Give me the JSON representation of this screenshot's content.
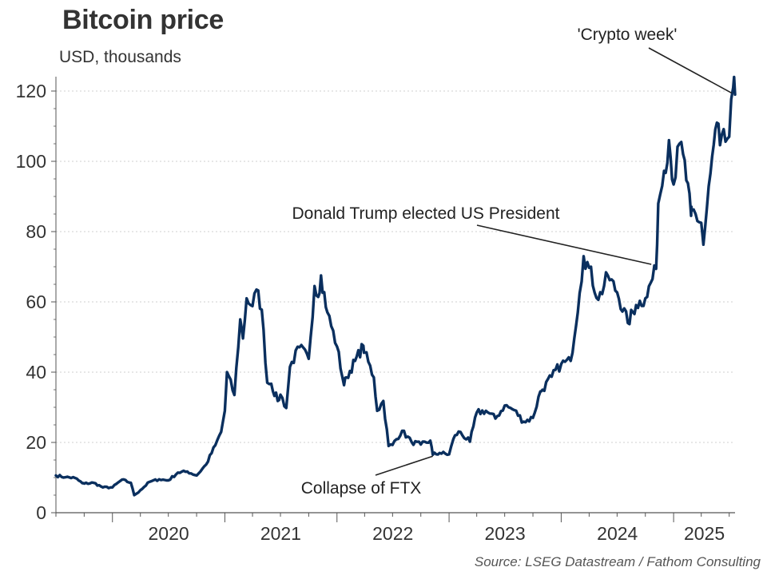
{
  "chart_data": {
    "type": "line",
    "title": "Bitcoin price",
    "subtitle": "USD, thousands",
    "source": "Source: LSEG Datastream / Fathom Consulting",
    "xlabel": "",
    "ylabel": "",
    "xlim": [
      "2019-07-01",
      "2025-07-20"
    ],
    "ylim": [
      0,
      120
    ],
    "yticks": [
      0,
      20,
      40,
      60,
      80,
      100,
      120
    ],
    "xticklabels": [
      "2020",
      "2021",
      "2022",
      "2023",
      "2024",
      "2025"
    ],
    "grid": true,
    "line_color": "#0a2f5e",
    "series": [
      {
        "name": "",
        "x": [
          "2019-07-01",
          "2019-08-01",
          "2019-09-01",
          "2019-09-25",
          "2019-10-01",
          "2019-11-01",
          "2019-12-01",
          "2020-01-01",
          "2020-02-01",
          "2020-03-01",
          "2020-03-12",
          "2020-04-01",
          "2020-05-01",
          "2020-06-01",
          "2020-07-01",
          "2020-08-01",
          "2020-09-01",
          "2020-10-01",
          "2020-11-01",
          "2020-12-01",
          "2020-12-20",
          "2021-01-01",
          "2021-01-08",
          "2021-02-01",
          "2021-02-20",
          "2021-03-01",
          "2021-03-13",
          "2021-04-01",
          "2021-04-14",
          "2021-05-01",
          "2021-05-19",
          "2021-06-01",
          "2021-06-22",
          "2021-07-01",
          "2021-07-20",
          "2021-08-01",
          "2021-09-01",
          "2021-10-01",
          "2021-10-20",
          "2021-11-01",
          "2021-11-10",
          "2021-12-01",
          "2022-01-01",
          "2022-01-24",
          "2022-02-01",
          "2022-03-01",
          "2022-03-28",
          "2022-04-01",
          "2022-05-01",
          "2022-05-12",
          "2022-06-01",
          "2022-06-18",
          "2022-07-01",
          "2022-08-01",
          "2022-09-01",
          "2022-10-01",
          "2022-11-01",
          "2022-11-09",
          "2022-12-01",
          "2023-01-01",
          "2023-01-15",
          "2023-02-01",
          "2023-03-10",
          "2023-04-01",
          "2023-05-01",
          "2023-06-01",
          "2023-07-01",
          "2023-08-01",
          "2023-09-01",
          "2023-10-01",
          "2023-10-25",
          "2023-11-01",
          "2023-12-01",
          "2024-01-01",
          "2024-02-01",
          "2024-03-01",
          "2024-03-14",
          "2024-04-01",
          "2024-05-01",
          "2024-06-01",
          "2024-07-01",
          "2024-08-05",
          "2024-09-01",
          "2024-10-01",
          "2024-11-05",
          "2024-11-12",
          "2024-12-01",
          "2024-12-17",
          "2025-01-01",
          "2025-01-20",
          "2025-02-01",
          "2025-02-27",
          "2025-03-01",
          "2025-04-01",
          "2025-04-08",
          "2025-05-01",
          "2025-05-22",
          "2025-06-01",
          "2025-07-01",
          "2025-07-14",
          "2025-07-20"
        ],
        "values": [
          10.6,
          10.1,
          9.9,
          8.4,
          8.3,
          8.5,
          7.2,
          7.2,
          9.4,
          8.5,
          5.0,
          6.4,
          8.8,
          9.5,
          9.2,
          11.4,
          11.7,
          10.6,
          13.7,
          19.2,
          23.0,
          29.0,
          40.0,
          33.5,
          55.0,
          49.6,
          61.0,
          58.8,
          63.5,
          57.8,
          37.0,
          36.7,
          31.8,
          33.6,
          29.8,
          41.5,
          47.1,
          43.8,
          64.5,
          61.4,
          67.5,
          57.0,
          47.3,
          36.3,
          38.5,
          43.2,
          47.5,
          45.6,
          38.5,
          29.0,
          31.8,
          19.0,
          19.3,
          23.3,
          20.1,
          19.4,
          20.5,
          16.5,
          17.0,
          16.6,
          21.0,
          23.1,
          20.2,
          28.5,
          29.0,
          26.8,
          30.5,
          29.2,
          25.9,
          27.0,
          34.5,
          35.0,
          38.7,
          42.3,
          43.2,
          62.5,
          73.0,
          69.7,
          60.6,
          67.5,
          62.7,
          54.0,
          59.1,
          61.0,
          69.4,
          88.0,
          97.3,
          106.0,
          93.4,
          105.0,
          102.0,
          84.5,
          86.0,
          82.5,
          76.3,
          96.5,
          111.0,
          104.6,
          107.0,
          121.0,
          119.0
        ]
      }
    ],
    "annotations": [
      {
        "text": "'Crypto week'",
        "x": "2025-07-14",
        "y": 119
      },
      {
        "text": "Donald Trump elected US President",
        "x": "2024-11-05",
        "y": 70
      },
      {
        "text": "Collapse of FTX",
        "x": "2022-11-09",
        "y": 17
      }
    ]
  }
}
